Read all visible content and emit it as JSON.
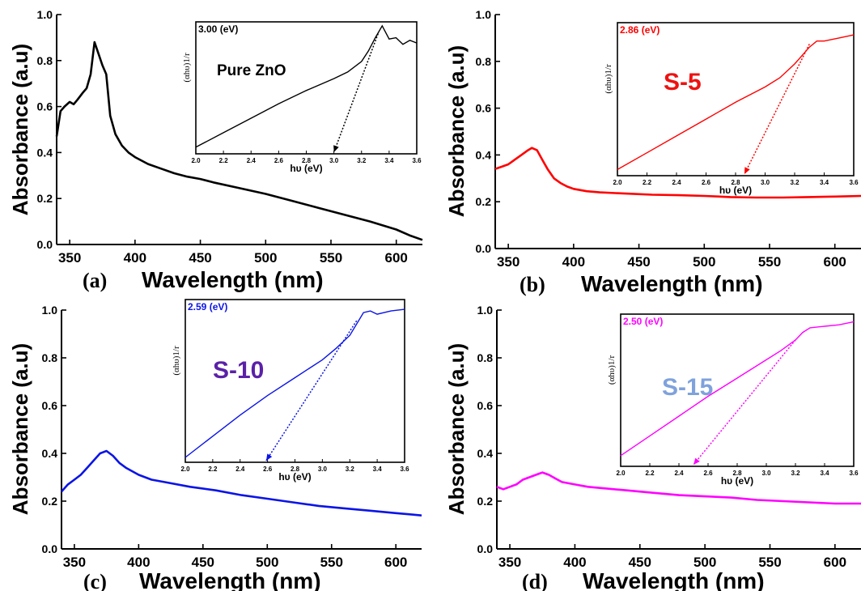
{
  "figure": {
    "panels": [
      {
        "label": "(a)",
        "xlabel": "Wavelength (nm)",
        "ylabel": "Absorbance (a.u)",
        "xlim": [
          340,
          620
        ],
        "ylim": [
          0.0,
          1.0
        ],
        "xticks": [
          "350",
          "400",
          "450",
          "500",
          "550",
          "600"
        ],
        "yticks": [
          "0.0",
          "0.2",
          "0.4",
          "0.6",
          "0.8",
          "1.0"
        ],
        "color": "#000000",
        "inset": {
          "value_text": "3.00",
          "unit_text": "(eV)",
          "sample_label": "Pure ZnO",
          "sample_color": "#000000",
          "xlabel": "hυ (eV)",
          "ylabel": "(αhυ)1/r",
          "xlim": [
            2.0,
            3.6
          ],
          "xticks": [
            "2.0",
            "2.2",
            "2.4",
            "2.6",
            "2.8",
            "3.0",
            "3.2",
            "3.4",
            "3.6"
          ],
          "bandgap_ev": 3.0
        }
      },
      {
        "label": "(b)",
        "xlabel": "Wavelength (nm)",
        "ylabel": "Absorbance (a.u)",
        "xlim": [
          340,
          620
        ],
        "ylim": [
          0.0,
          1.0
        ],
        "xticks": [
          "350",
          "400",
          "450",
          "500",
          "550",
          "600"
        ],
        "yticks": [
          "0.0",
          "0.2",
          "0.4",
          "0.6",
          "0.8",
          "1.0"
        ],
        "color": "#ff0000",
        "inset": {
          "value_text": "2.86",
          "unit_text": "(eV)",
          "sample_label": "S-5",
          "sample_color": "#ee1111",
          "xlabel": "hυ (eV)",
          "ylabel": "(αhυ)1/r",
          "xlim": [
            2.0,
            3.6
          ],
          "xticks": [
            "2.0",
            "2.2",
            "2.4",
            "2.6",
            "2.8",
            "3.0",
            "3.2",
            "3.4",
            "3.6"
          ],
          "bandgap_ev": 2.86
        }
      },
      {
        "label": "(c)",
        "xlabel": "Wavelength (nm)",
        "ylabel": "Absorbance (a.u)",
        "xlim": [
          340,
          620
        ],
        "ylim": [
          0.0,
          1.0
        ],
        "xticks": [
          "350",
          "400",
          "450",
          "500",
          "550",
          "600"
        ],
        "yticks": [
          "0.0",
          "0.2",
          "0.4",
          "0.6",
          "0.8",
          "1.0"
        ],
        "color": "#0b14e6",
        "inset": {
          "value_text": "2.59",
          "unit_text": "(eV)",
          "sample_label": "S-10",
          "sample_color": "#5b21a8",
          "xlabel": "hυ (eV)",
          "ylabel": "(αhυ)1/r",
          "xlim": [
            2.0,
            3.6
          ],
          "xticks": [
            "2.0",
            "2.2",
            "2.4",
            "2.6",
            "2.8",
            "3.0",
            "3.2",
            "3.4",
            "3.6"
          ],
          "bandgap_ev": 2.59
        }
      },
      {
        "label": "(d)",
        "xlabel": "Wavelength (nm)",
        "ylabel": "Absorbance (a.u)",
        "xlim": [
          340,
          620
        ],
        "ylim": [
          0.0,
          1.0
        ],
        "xticks": [
          "350",
          "400",
          "450",
          "500",
          "550",
          "600"
        ],
        "yticks": [
          "0.0",
          "0.2",
          "0.4",
          "0.6",
          "0.8",
          "1.0"
        ],
        "color": "#ff00ff",
        "inset": {
          "value_text": "2.50",
          "unit_text": "(eV)",
          "sample_label": "S-15",
          "sample_color": "#7fa2dc",
          "xlabel": "hυ (eV)",
          "ylabel": "(αhυ)1/r",
          "xlim": [
            2.0,
            3.6
          ],
          "xticks": [
            "2.0",
            "2.2",
            "2.4",
            "2.6",
            "2.8",
            "3.0",
            "3.2",
            "3.4",
            "3.6"
          ],
          "bandgap_ev": 2.5
        }
      }
    ]
  },
  "chart_data": [
    {
      "type": "line",
      "series": [
        {
          "values_note_free": true,
          "x": [
            340,
            343,
            346,
            350,
            353,
            356,
            360,
            363,
            366,
            369,
            372,
            375,
            378,
            381,
            385,
            390,
            395,
            400,
            410,
            420,
            430,
            440,
            450,
            460,
            480,
            500,
            520,
            540,
            560,
            580,
            600,
            610,
            620
          ],
          "y": [
            0.47,
            0.58,
            0.6,
            0.62,
            0.61,
            0.63,
            0.66,
            0.68,
            0.74,
            0.88,
            0.83,
            0.78,
            0.74,
            0.56,
            0.48,
            0.43,
            0.4,
            0.38,
            0.35,
            0.33,
            0.31,
            0.295,
            0.285,
            0.27,
            0.245,
            0.22,
            0.19,
            0.16,
            0.13,
            0.1,
            0.065,
            0.04,
            0.02
          ]
        }
      ],
      "xlabel": "Wavelength (nm)",
      "ylabel": "Absorbance (a.u)",
      "xlim": [
        340,
        620
      ],
      "ylim": [
        0,
        1.0
      ],
      "inset": {
        "x": [
          2.0,
          2.2,
          2.4,
          2.6,
          2.8,
          3.0,
          3.1,
          3.2,
          3.25,
          3.3,
          3.35,
          3.4,
          3.45,
          3.5,
          3.55,
          3.6
        ],
        "y": [
          0.05,
          0.16,
          0.27,
          0.38,
          0.48,
          0.57,
          0.62,
          0.7,
          0.78,
          0.88,
          0.97,
          0.87,
          0.88,
          0.83,
          0.86,
          0.84
        ],
        "tangent": [
          [
            3.0,
            0.0
          ],
          [
            3.32,
            0.91
          ]
        ],
        "bandgap_ev": 3.0
      }
    },
    {
      "type": "line",
      "series": [
        {
          "x": [
            340,
            345,
            350,
            355,
            360,
            365,
            368,
            372,
            376,
            380,
            385,
            390,
            395,
            400,
            410,
            420,
            440,
            460,
            480,
            500,
            520,
            540,
            560,
            580,
            600,
            620
          ],
          "y": [
            0.34,
            0.35,
            0.36,
            0.38,
            0.4,
            0.42,
            0.43,
            0.42,
            0.38,
            0.34,
            0.3,
            0.28,
            0.265,
            0.255,
            0.245,
            0.24,
            0.235,
            0.23,
            0.228,
            0.225,
            0.22,
            0.218,
            0.218,
            0.22,
            0.222,
            0.225
          ]
        }
      ],
      "xlabel": "Wavelength (nm)",
      "ylabel": "Absorbance (a.u)",
      "xlim": [
        340,
        620
      ],
      "ylim": [
        0,
        1.0
      ],
      "inset": {
        "x": [
          2.0,
          2.2,
          2.4,
          2.6,
          2.8,
          3.0,
          3.1,
          3.2,
          3.3,
          3.35,
          3.4,
          3.5,
          3.6
        ],
        "y": [
          0.04,
          0.15,
          0.26,
          0.37,
          0.48,
          0.58,
          0.64,
          0.73,
          0.84,
          0.88,
          0.88,
          0.9,
          0.92
        ],
        "tangent": [
          [
            2.86,
            0.0
          ],
          [
            3.3,
            0.86
          ]
        ],
        "bandgap_ev": 2.86
      }
    },
    {
      "type": "line",
      "series": [
        {
          "x": [
            340,
            345,
            350,
            355,
            360,
            365,
            370,
            375,
            380,
            385,
            390,
            400,
            410,
            420,
            440,
            460,
            480,
            500,
            520,
            540,
            560,
            580,
            600,
            610,
            620
          ],
          "y": [
            0.24,
            0.27,
            0.29,
            0.31,
            0.34,
            0.37,
            0.4,
            0.41,
            0.39,
            0.36,
            0.34,
            0.31,
            0.29,
            0.28,
            0.26,
            0.245,
            0.225,
            0.21,
            0.195,
            0.18,
            0.17,
            0.16,
            0.15,
            0.145,
            0.14
          ]
        }
      ],
      "xlabel": "Wavelength (nm)",
      "ylabel": "Absorbance (a.u)",
      "xlim": [
        340,
        620
      ],
      "ylim": [
        0,
        1.0
      ],
      "inset": {
        "x": [
          2.0,
          2.2,
          2.4,
          2.6,
          2.8,
          3.0,
          3.1,
          3.2,
          3.3,
          3.35,
          3.4,
          3.5,
          3.6
        ],
        "y": [
          0.03,
          0.16,
          0.29,
          0.41,
          0.52,
          0.63,
          0.7,
          0.78,
          0.92,
          0.93,
          0.91,
          0.93,
          0.94
        ],
        "tangent": [
          [
            2.59,
            0.0
          ],
          [
            3.25,
            0.87
          ]
        ],
        "bandgap_ev": 2.59
      }
    },
    {
      "type": "line",
      "series": [
        {
          "x": [
            340,
            345,
            350,
            355,
            360,
            365,
            370,
            375,
            380,
            385,
            390,
            400,
            410,
            420,
            440,
            460,
            480,
            500,
            520,
            540,
            560,
            580,
            600,
            620
          ],
          "y": [
            0.26,
            0.25,
            0.26,
            0.27,
            0.29,
            0.3,
            0.31,
            0.32,
            0.31,
            0.295,
            0.28,
            0.27,
            0.26,
            0.255,
            0.245,
            0.235,
            0.225,
            0.22,
            0.215,
            0.205,
            0.2,
            0.195,
            0.19,
            0.19
          ]
        }
      ],
      "xlabel": "Wavelength (nm)",
      "ylabel": "Absorbance (a.u)",
      "xlim": [
        340,
        620
      ],
      "ylim": [
        0,
        1.0
      ],
      "inset": {
        "x": [
          2.0,
          2.2,
          2.4,
          2.6,
          2.8,
          3.0,
          3.1,
          3.2,
          3.25,
          3.3,
          3.4,
          3.5,
          3.6
        ],
        "y": [
          0.07,
          0.2,
          0.33,
          0.46,
          0.58,
          0.7,
          0.76,
          0.83,
          0.88,
          0.91,
          0.92,
          0.93,
          0.95
        ],
        "tangent": [
          [
            2.5,
            0.0
          ],
          [
            3.2,
            0.83
          ]
        ],
        "bandgap_ev": 2.5
      }
    }
  ]
}
